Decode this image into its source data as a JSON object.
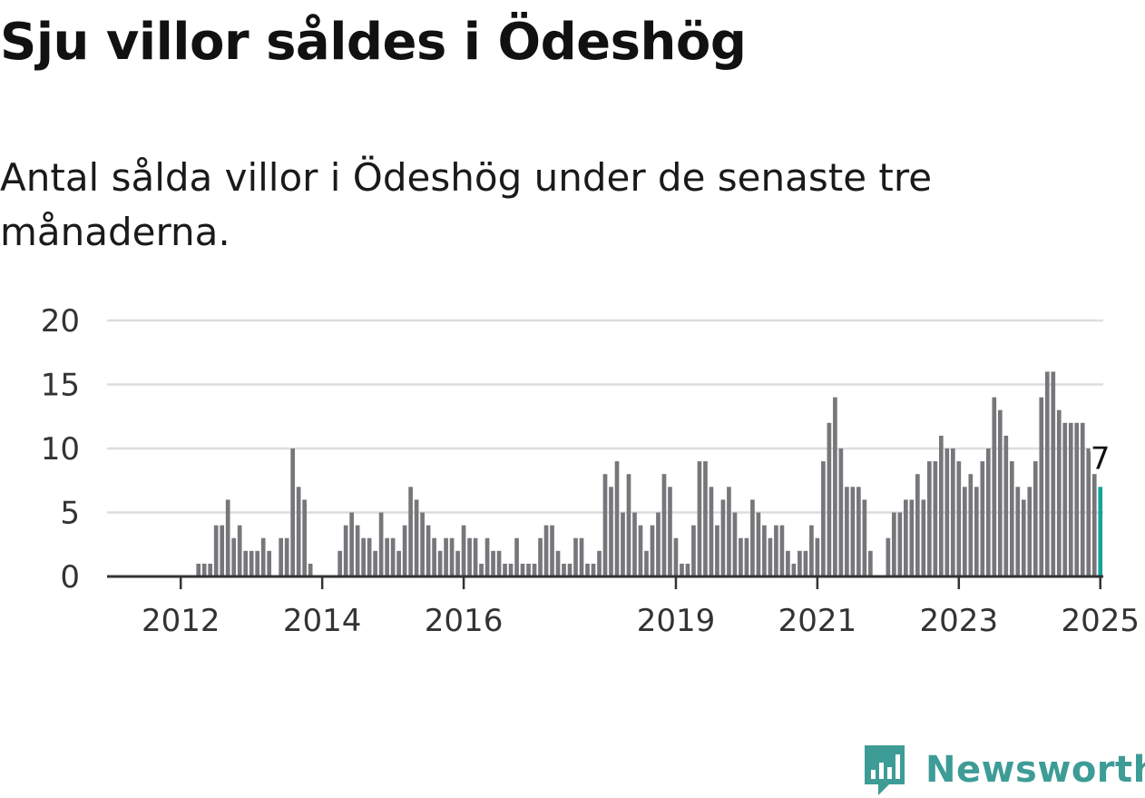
{
  "title": "Sju villor såldes i Ödeshög",
  "subtitle": "Antal sålda villor i Ödeshög under de senaste tre månaderna.",
  "brand": {
    "name": "Newsworthy",
    "color": "#3e9c97",
    "icon": "bar-chart-speech-bubble-icon"
  },
  "chart_data": {
    "type": "bar",
    "title": "",
    "xlabel": "",
    "ylabel": "",
    "ylim": [
      0,
      20
    ],
    "yticks": [
      0,
      5,
      10,
      15,
      20
    ],
    "grid": true,
    "legend": "none",
    "colors": {
      "bars": "#77777b",
      "highlight": "#16a39c",
      "grid": "#dddddd",
      "axis": "#333333"
    },
    "start_month": "2011-01",
    "end_month": "2025-02",
    "xticks": [
      {
        "label": "2012",
        "month": "2012-01"
      },
      {
        "label": "2014",
        "month": "2014-01"
      },
      {
        "label": "2016",
        "month": "2016-01"
      },
      {
        "label": "2019",
        "month": "2019-01"
      },
      {
        "label": "2021",
        "month": "2021-01"
      },
      {
        "label": "2023",
        "month": "2023-01"
      },
      {
        "label": "2025",
        "month": "2025-01"
      }
    ],
    "highlight_label": "7",
    "values": [
      0,
      0,
      0,
      0,
      0,
      0,
      0,
      0,
      0,
      0,
      0,
      0,
      0,
      0,
      0,
      1,
      1,
      1,
      4,
      4,
      6,
      3,
      4,
      2,
      2,
      2,
      3,
      2,
      0,
      3,
      3,
      10,
      7,
      6,
      1,
      0,
      0,
      0,
      0,
      2,
      4,
      5,
      4,
      3,
      3,
      2,
      5,
      3,
      3,
      2,
      4,
      7,
      6,
      5,
      4,
      3,
      2,
      3,
      3,
      2,
      4,
      3,
      3,
      1,
      3,
      2,
      2,
      1,
      1,
      3,
      1,
      1,
      1,
      3,
      4,
      4,
      2,
      1,
      1,
      3,
      3,
      1,
      1,
      2,
      8,
      7,
      9,
      5,
      8,
      5,
      4,
      2,
      4,
      5,
      8,
      7,
      3,
      1,
      1,
      4,
      9,
      9,
      7,
      4,
      6,
      7,
      5,
      3,
      3,
      6,
      5,
      4,
      3,
      4,
      4,
      2,
      1,
      2,
      2,
      4,
      3,
      9,
      12,
      14,
      10,
      7,
      7,
      7,
      6,
      2,
      0,
      0,
      3,
      5,
      5,
      6,
      6,
      8,
      6,
      9,
      9,
      11,
      10,
      10,
      9,
      7,
      8,
      7,
      9,
      10,
      14,
      13,
      11,
      9,
      7,
      6,
      7,
      9,
      14,
      16,
      16,
      13,
      12,
      12,
      12,
      12,
      10,
      8,
      7
    ]
  }
}
